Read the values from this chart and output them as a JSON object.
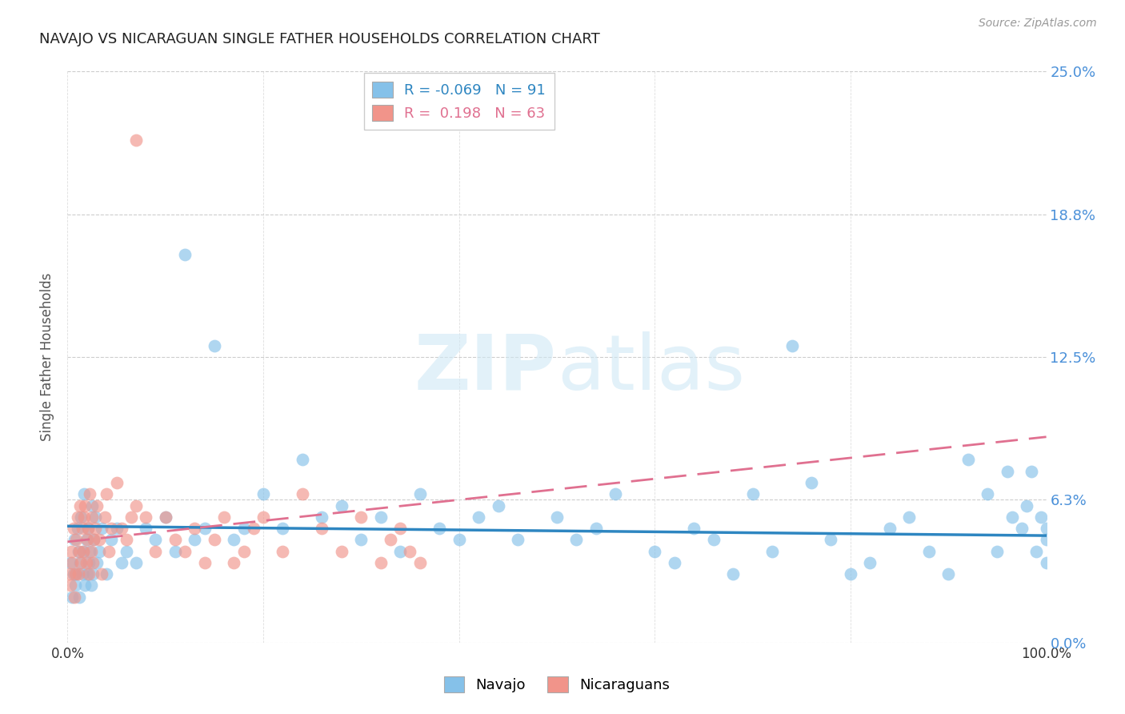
{
  "title": "NAVAJO VS NICARAGUAN SINGLE FATHER HOUSEHOLDS CORRELATION CHART",
  "source": "Source: ZipAtlas.com",
  "ylabel": "Single Father Households",
  "xlim": [
    0,
    100
  ],
  "ylim": [
    0,
    25
  ],
  "ytick_labels": [
    "0.0%",
    "6.3%",
    "12.5%",
    "18.8%",
    "25.0%"
  ],
  "ytick_values": [
    0,
    6.25,
    12.5,
    18.75,
    25.0
  ],
  "navajo_color": "#85C1E9",
  "nicaraguan_color": "#F1948A",
  "navajo_line_color": "#2E86C1",
  "nicaraguan_line_color": "#E07090",
  "navajo_R": -0.069,
  "navajo_N": 91,
  "nicaraguan_R": 0.198,
  "nicaraguan_N": 63,
  "background_color": "#ffffff",
  "grid_color": "#C8C8C8",
  "navajo_x": [
    0.3,
    0.5,
    0.6,
    0.7,
    0.8,
    0.9,
    1.0,
    1.1,
    1.2,
    1.3,
    1.4,
    1.5,
    1.6,
    1.7,
    1.8,
    1.9,
    2.0,
    2.1,
    2.2,
    2.3,
    2.4,
    2.5,
    2.6,
    2.7,
    2.8,
    3.0,
    3.2,
    3.5,
    4.0,
    4.5,
    5.0,
    5.5,
    6.0,
    7.0,
    8.0,
    9.0,
    10.0,
    11.0,
    12.0,
    13.0,
    14.0,
    15.0,
    17.0,
    18.0,
    20.0,
    22.0,
    24.0,
    26.0,
    28.0,
    30.0,
    32.0,
    34.0,
    36.0,
    38.0,
    40.0,
    42.0,
    44.0,
    46.0,
    50.0,
    52.0,
    54.0,
    56.0,
    60.0,
    62.0,
    64.0,
    66.0,
    68.0,
    70.0,
    72.0,
    74.0,
    76.0,
    78.0,
    80.0,
    82.0,
    84.0,
    86.0,
    88.0,
    90.0,
    92.0,
    94.0,
    96.0,
    98.0,
    99.0,
    100.0,
    100.0,
    100.0,
    99.5,
    98.5,
    97.5,
    96.5,
    95.0
  ],
  "navajo_y": [
    3.5,
    2.0,
    3.0,
    4.5,
    2.5,
    3.0,
    5.0,
    4.0,
    2.0,
    3.5,
    5.5,
    3.0,
    4.0,
    6.5,
    2.5,
    4.5,
    3.0,
    5.0,
    3.5,
    4.0,
    2.5,
    6.0,
    3.0,
    4.5,
    5.5,
    3.5,
    4.0,
    5.0,
    3.0,
    4.5,
    5.0,
    3.5,
    4.0,
    3.5,
    5.0,
    4.5,
    5.5,
    4.0,
    17.0,
    4.5,
    5.0,
    13.0,
    4.5,
    5.0,
    6.5,
    5.0,
    8.0,
    5.5,
    6.0,
    4.5,
    5.5,
    4.0,
    6.5,
    5.0,
    4.5,
    5.5,
    6.0,
    4.5,
    5.5,
    4.5,
    5.0,
    6.5,
    4.0,
    3.5,
    5.0,
    4.5,
    3.0,
    6.5,
    4.0,
    13.0,
    7.0,
    4.5,
    3.0,
    3.5,
    5.0,
    5.5,
    4.0,
    3.0,
    8.0,
    6.5,
    7.5,
    6.0,
    4.0,
    5.0,
    4.5,
    3.5,
    5.5,
    7.5,
    5.0,
    5.5,
    4.0
  ],
  "nicaraguan_x": [
    0.2,
    0.3,
    0.4,
    0.5,
    0.6,
    0.7,
    0.8,
    0.9,
    1.0,
    1.1,
    1.2,
    1.3,
    1.4,
    1.5,
    1.6,
    1.7,
    1.8,
    1.9,
    2.0,
    2.1,
    2.2,
    2.3,
    2.4,
    2.5,
    2.6,
    2.7,
    2.8,
    3.0,
    3.2,
    3.5,
    3.8,
    4.0,
    4.2,
    4.5,
    5.0,
    5.5,
    6.0,
    6.5,
    7.0,
    8.0,
    9.0,
    10.0,
    11.0,
    12.0,
    13.0,
    14.0,
    15.0,
    16.0,
    17.0,
    18.0,
    19.0,
    20.0,
    22.0,
    24.0,
    26.0,
    28.0,
    30.0,
    32.0,
    33.0,
    34.0,
    35.0,
    36.0,
    7.0
  ],
  "nicaraguan_y": [
    3.0,
    2.5,
    4.0,
    3.5,
    5.0,
    2.0,
    3.0,
    4.5,
    5.5,
    3.0,
    4.0,
    6.0,
    3.5,
    5.0,
    4.0,
    5.5,
    6.0,
    3.5,
    4.5,
    5.0,
    3.0,
    6.5,
    4.0,
    5.5,
    3.5,
    4.5,
    5.0,
    6.0,
    4.5,
    3.0,
    5.5,
    6.5,
    4.0,
    5.0,
    7.0,
    5.0,
    4.5,
    5.5,
    6.0,
    5.5,
    4.0,
    5.5,
    4.5,
    4.0,
    5.0,
    3.5,
    4.5,
    5.5,
    3.5,
    4.0,
    5.0,
    5.5,
    4.0,
    6.5,
    5.0,
    4.0,
    5.5,
    3.5,
    4.5,
    5.0,
    4.0,
    3.5,
    22.0
  ]
}
